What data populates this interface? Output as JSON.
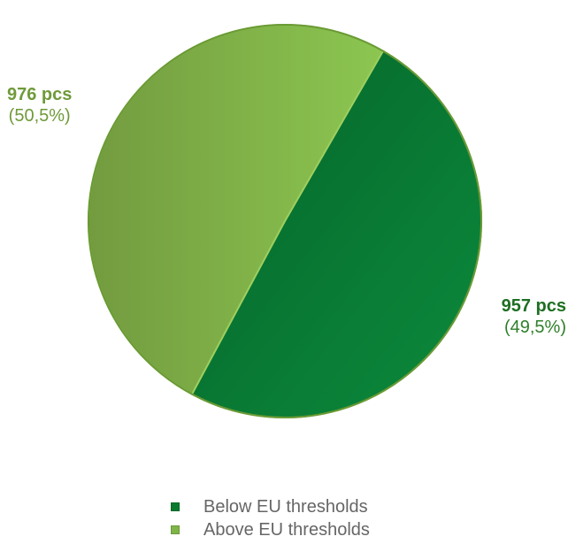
{
  "chart_data": {
    "type": "pie",
    "categories": [
      "Below EU thresholds",
      "Above EU thresholds"
    ],
    "values": [
      957,
      976
    ],
    "percent_labels": [
      "(49,5%)",
      "(50,5%)"
    ],
    "count_labels": [
      "957 pcs",
      "976 pcs"
    ],
    "colors": [
      "#0a7a2f",
      "#7fb447"
    ],
    "legend_position": "bottom",
    "start_angle_deg": 30,
    "title": ""
  }
}
